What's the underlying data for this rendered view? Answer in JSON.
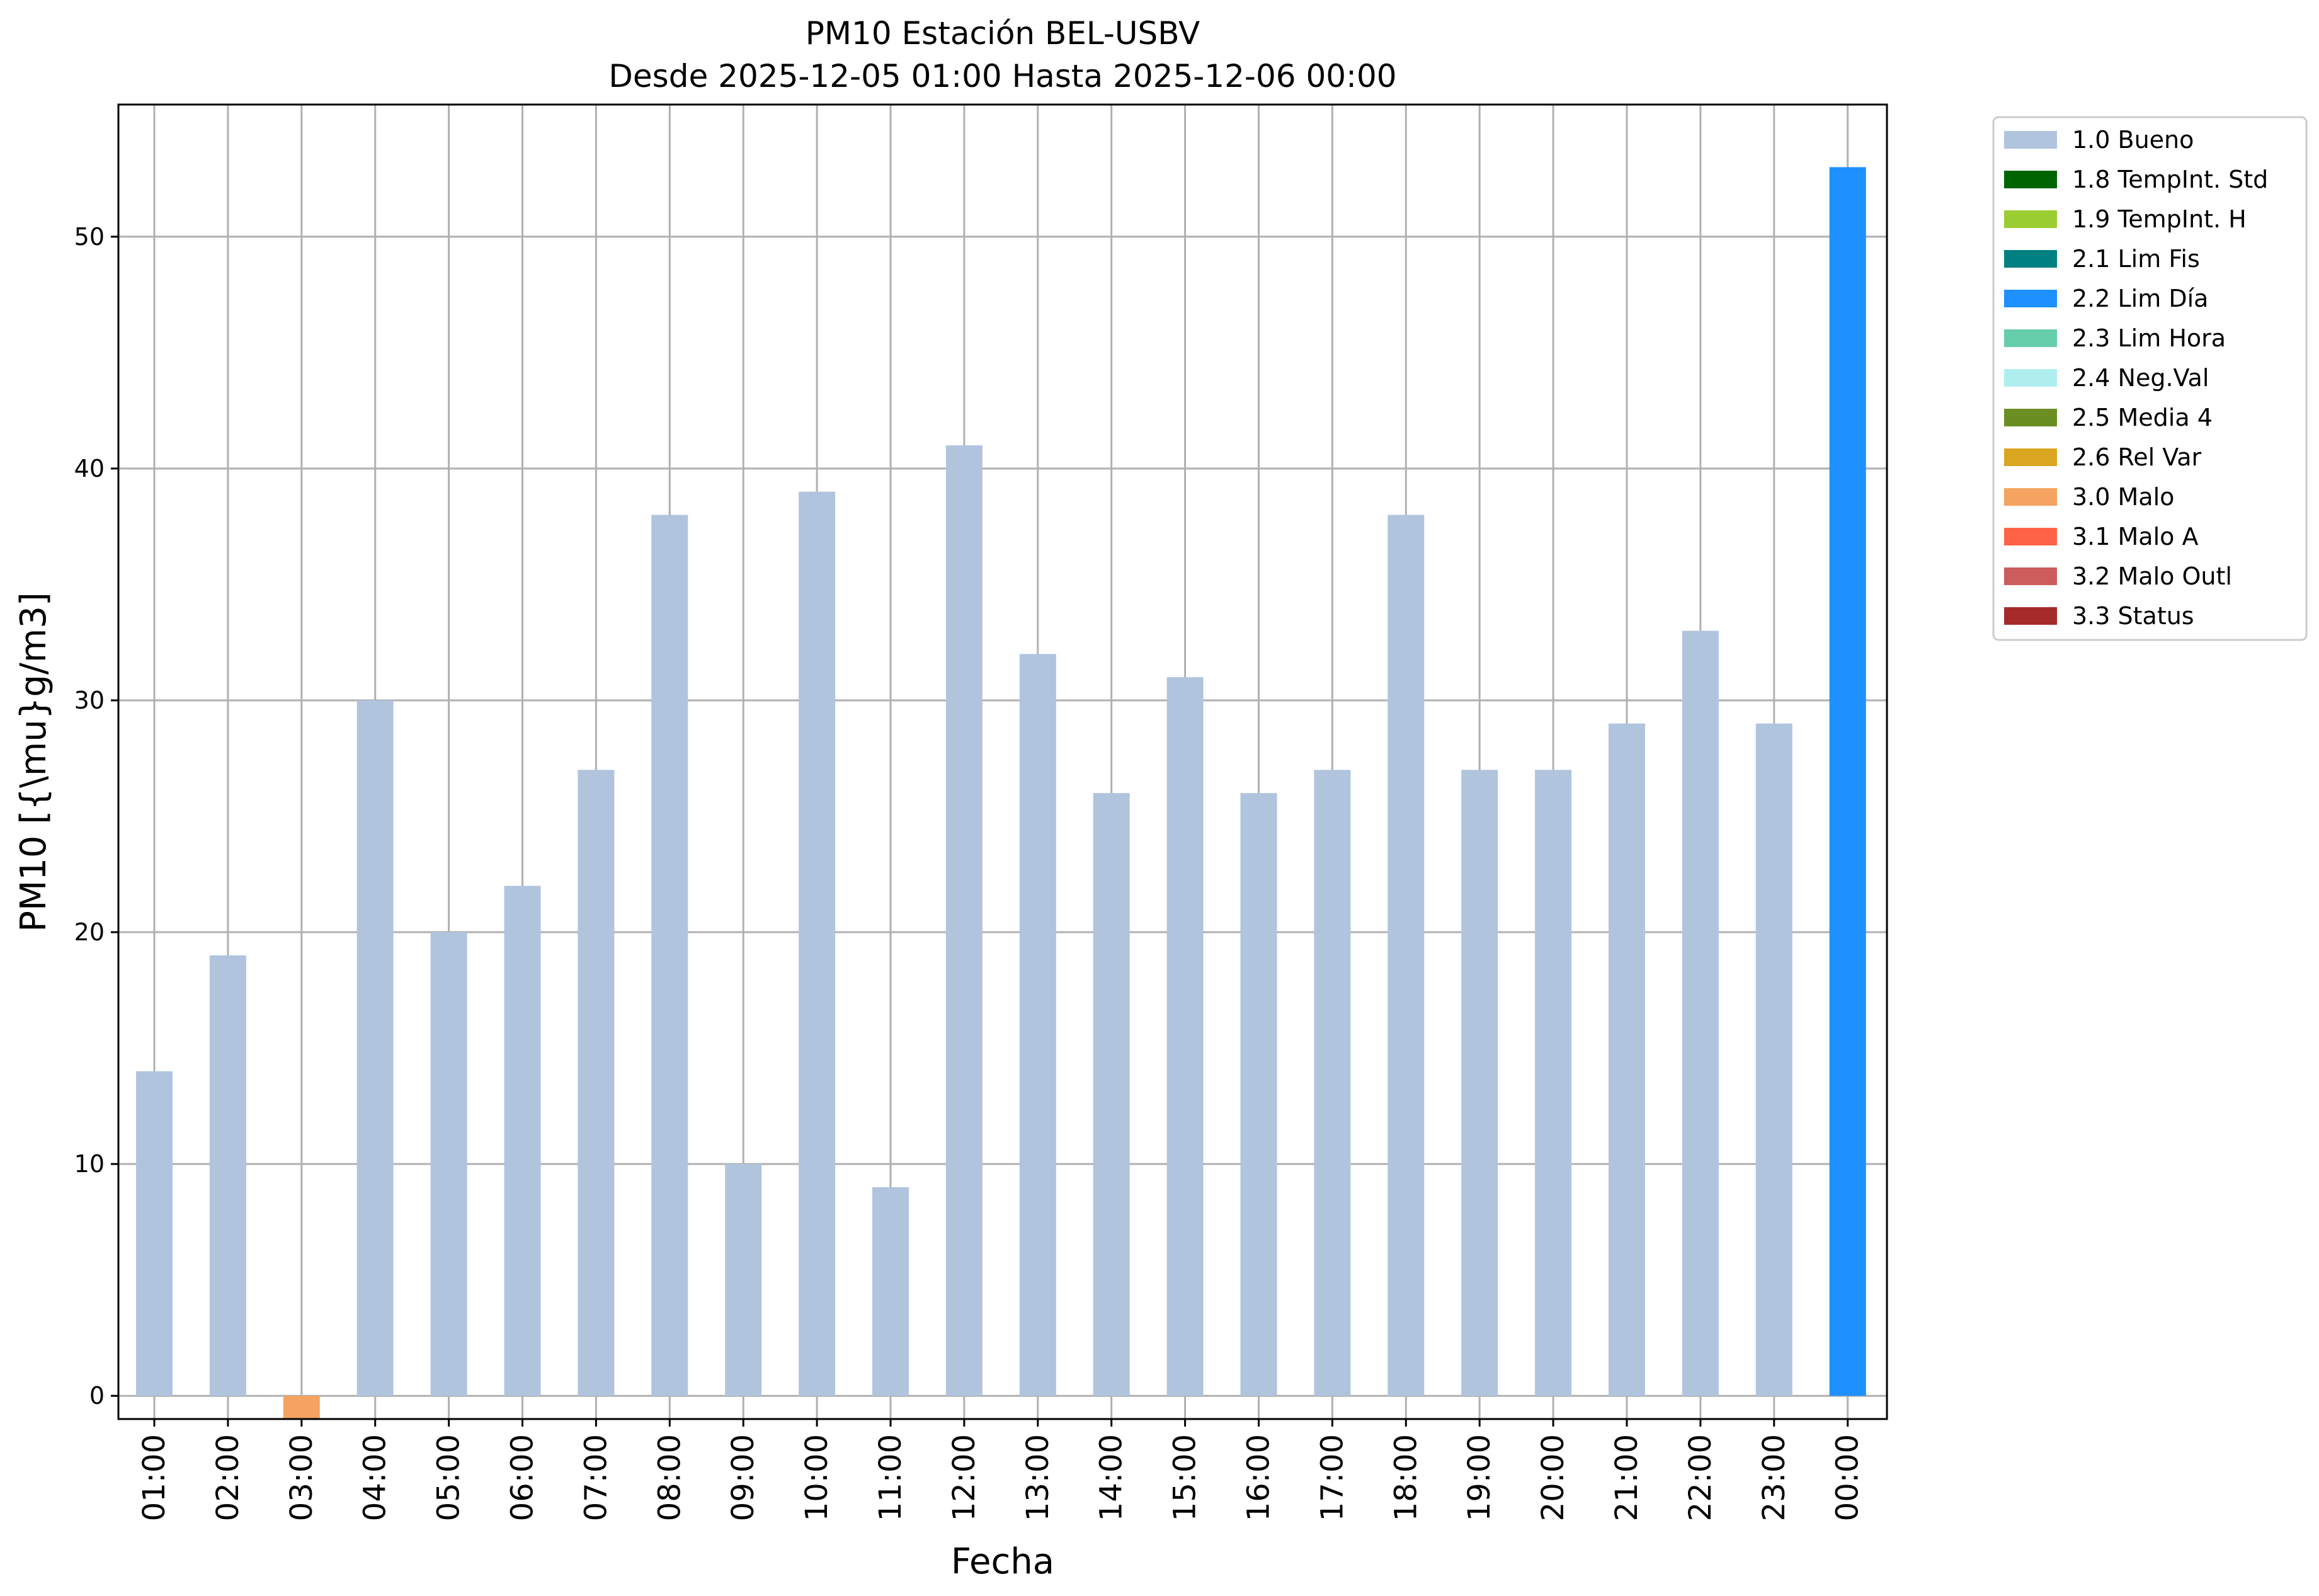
{
  "chart_data": {
    "type": "bar",
    "title": "PM10 Estación BEL-USBV",
    "subtitle": "Desde 2025-12-05 01:00 Hasta 2025-12-06 00:00",
    "xlabel": "Fecha",
    "ylabel": "PM10 [{\\mu}g/m3]",
    "ylim": [
      -1,
      55.7
    ],
    "yticks": [
      0,
      10,
      20,
      30,
      40,
      50
    ],
    "grid": true,
    "legend_position": "outside-top-right",
    "categories": [
      "01:00",
      "02:00",
      "03:00",
      "04:00",
      "05:00",
      "06:00",
      "07:00",
      "08:00",
      "09:00",
      "10:00",
      "11:00",
      "12:00",
      "13:00",
      "14:00",
      "15:00",
      "16:00",
      "17:00",
      "18:00",
      "19:00",
      "20:00",
      "21:00",
      "22:00",
      "23:00",
      "00:00"
    ],
    "values": [
      14,
      19,
      -1,
      30,
      20,
      22,
      27,
      38,
      10,
      39,
      9,
      41,
      32,
      26,
      31,
      26,
      27,
      38,
      27,
      27,
      29,
      33,
      29,
      53
    ],
    "flags": [
      "1.0 Bueno",
      "1.0 Bueno",
      "3.0 Malo",
      "1.0 Bueno",
      "1.0 Bueno",
      "1.0 Bueno",
      "1.0 Bueno",
      "1.0 Bueno",
      "1.0 Bueno",
      "1.0 Bueno",
      "1.0 Bueno",
      "1.0 Bueno",
      "1.0 Bueno",
      "1.0 Bueno",
      "1.0 Bueno",
      "1.0 Bueno",
      "1.0 Bueno",
      "1.0 Bueno",
      "1.0 Bueno",
      "1.0 Bueno",
      "1.0 Bueno",
      "1.0 Bueno",
      "1.0 Bueno",
      "2.2 Lim Día"
    ],
    "legend": [
      {
        "label": "1.0 Bueno",
        "color": "#b0c4de"
      },
      {
        "label": "1.8 TempInt. Std",
        "color": "#006400"
      },
      {
        "label": "1.9 TempInt. H",
        "color": "#9acd32"
      },
      {
        "label": "2.1 Lim Fis",
        "color": "#008080"
      },
      {
        "label": "2.2 Lim Día",
        "color": "#1e90ff"
      },
      {
        "label": "2.3 Lim Hora",
        "color": "#66cdaa"
      },
      {
        "label": "2.4 Neg.Val",
        "color": "#afeeee"
      },
      {
        "label": "2.5 Media 4",
        "color": "#6b8e23"
      },
      {
        "label": "2.6 Rel Var",
        "color": "#daa520"
      },
      {
        "label": "3.0 Malo",
        "color": "#f4a460"
      },
      {
        "label": "3.1 Malo A",
        "color": "#ff6347"
      },
      {
        "label": "3.2 Malo Outl",
        "color": "#cd5c5c"
      },
      {
        "label": "3.3 Status",
        "color": "#a52a2a"
      }
    ]
  }
}
